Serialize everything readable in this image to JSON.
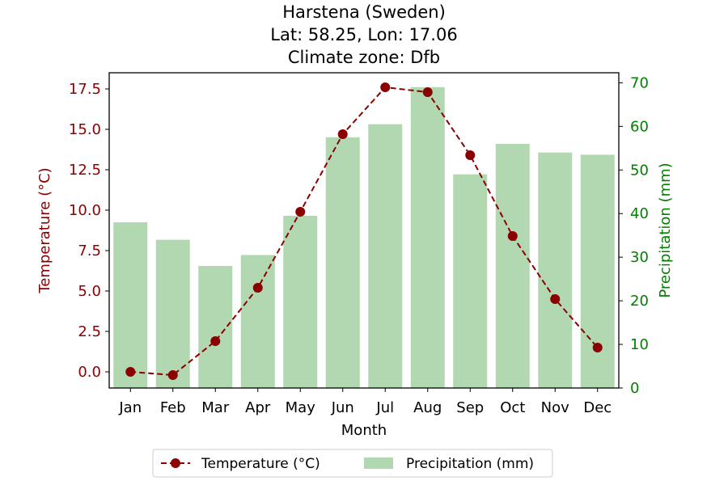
{
  "chart_data": {
    "type": "bar+line",
    "title_lines": [
      "Harstena (Sweden)",
      "Lat: 58.25, Lon: 17.06",
      "Climate zone: Dfb"
    ],
    "xlabel": "Month",
    "ylabel_left": "Temperature (°C)",
    "ylabel_right": "Precipitation (mm)",
    "categories": [
      "Jan",
      "Feb",
      "Mar",
      "Apr",
      "May",
      "Jun",
      "Jul",
      "Aug",
      "Sep",
      "Oct",
      "Nov",
      "Dec"
    ],
    "temperature": {
      "name": "Temperature (°C)",
      "values": [
        0.0,
        -0.2,
        1.9,
        5.2,
        9.9,
        14.7,
        17.6,
        17.3,
        13.4,
        8.4,
        4.5,
        1.5
      ],
      "color": "#8b0000"
    },
    "precipitation": {
      "name": "Precipitation (mm)",
      "values": [
        38,
        34,
        28,
        30.5,
        39.5,
        57.5,
        60.5,
        69,
        49,
        56,
        54,
        53.5
      ],
      "color": "#b2d8b2"
    },
    "ylim_left": [
      -1.0,
      18.5
    ],
    "yticks_left": [
      "0.0",
      "2.5",
      "5.0",
      "7.5",
      "10.0",
      "12.5",
      "15.0",
      "17.5"
    ],
    "ylim_right": [
      0,
      72.3
    ],
    "yticks_right": [
      "0",
      "10",
      "20",
      "30",
      "40",
      "50",
      "60",
      "70"
    ],
    "left_axis_color": "#8b0000",
    "right_axis_color": "#008000",
    "legend_placement": "bottom-center",
    "grid": false
  }
}
